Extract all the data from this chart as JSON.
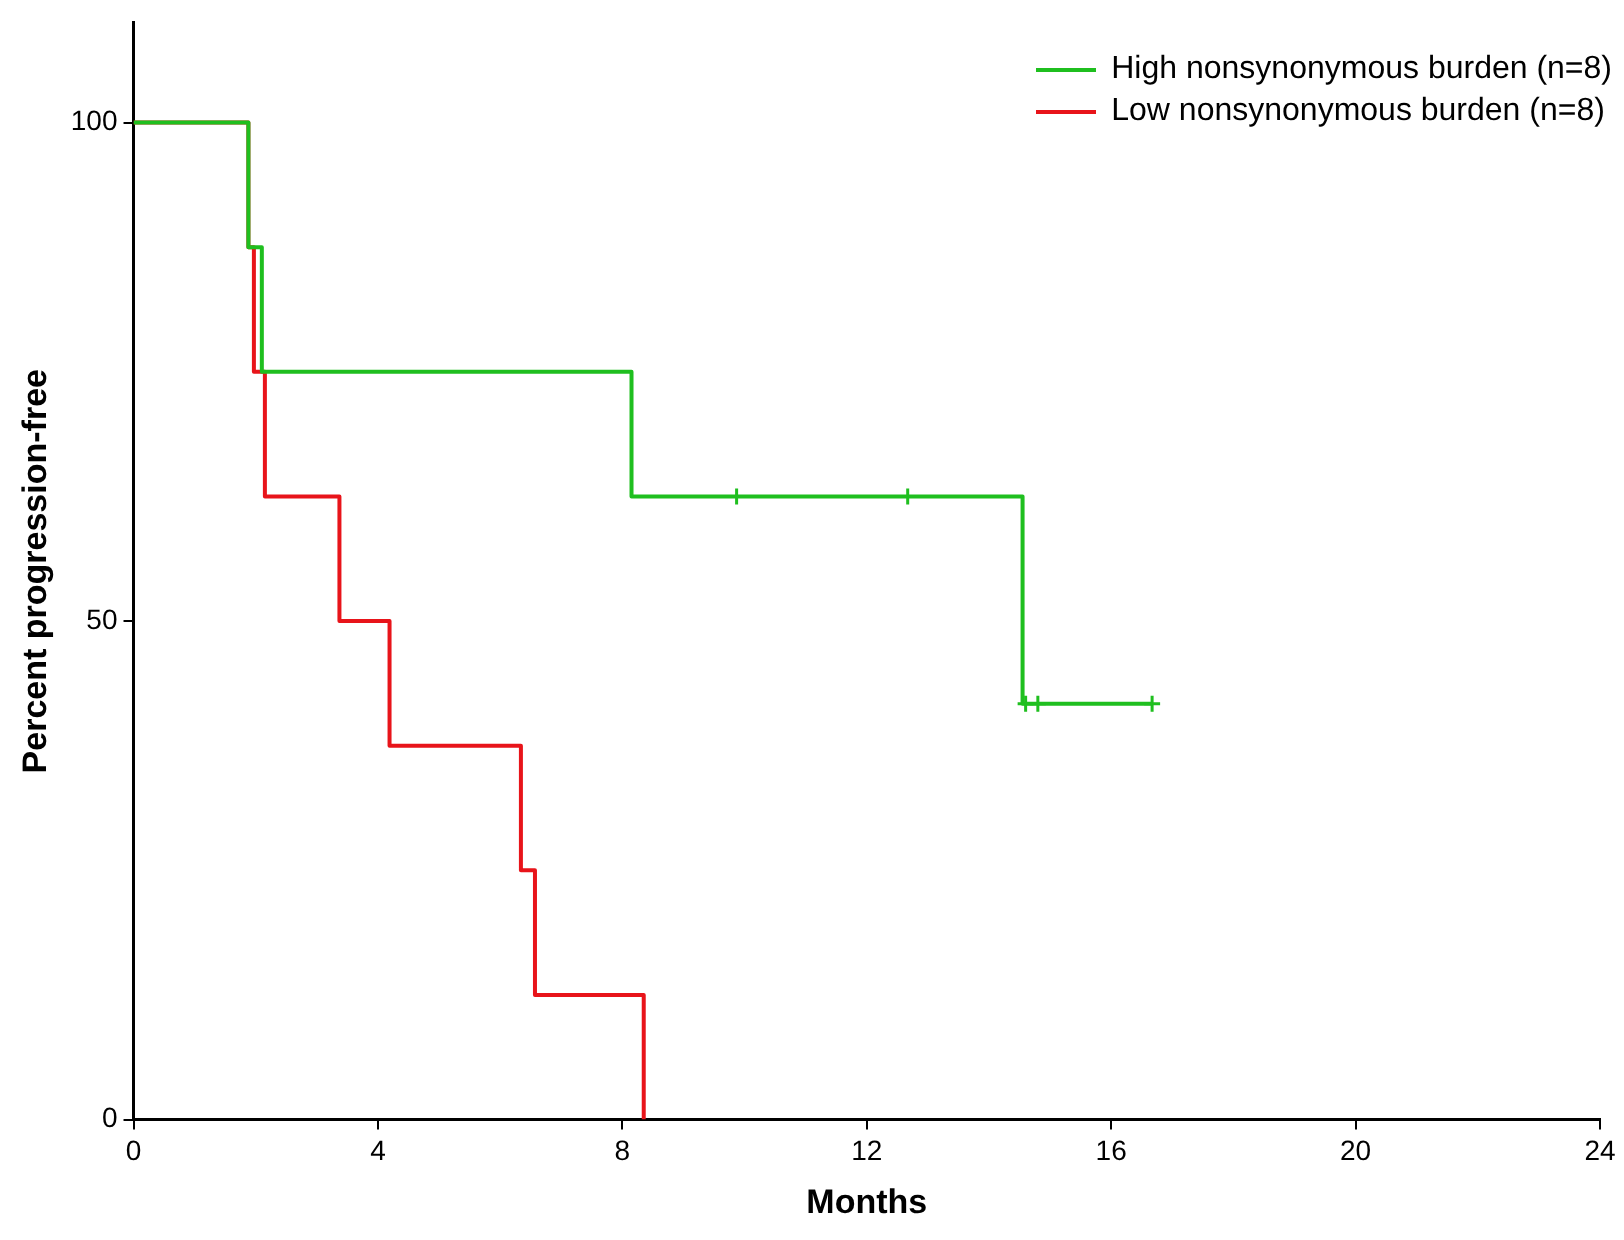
{
  "chart_data": {
    "type": "step",
    "xlabel": "Months",
    "ylabel": "Percent progression-free",
    "xlim": [
      0,
      24
    ],
    "xticks": [
      0,
      4,
      8,
      12,
      16,
      20,
      24
    ],
    "ylim": [
      0,
      110
    ],
    "yticks": [
      0,
      50,
      100
    ],
    "grid": false,
    "legend": "top right",
    "line_style": "solid",
    "series": [
      {
        "name": "High nonsynonymous burden (n=8)",
        "color": "#1fbf1f",
        "x": [
          0,
          1.88,
          2.1,
          8.15,
          14.55,
          16.67
        ],
        "values": [
          100,
          87.5,
          75,
          62.5,
          41.7,
          41.7
        ]
      },
      {
        "name": "Low nonsynonymous burden (n=8)",
        "color": "#e8141a",
        "x": [
          0,
          1.88,
          1.97,
          2.15,
          3.37,
          4.19,
          6.34,
          6.57,
          8.35
        ],
        "values": [
          100,
          87.5,
          75,
          62.5,
          50,
          37.5,
          25,
          12.5,
          0
        ]
      },
      {
        "type": "scatter",
        "marker": "cross",
        "color": "#1fbf1f",
        "x": [
          9.87,
          12.67,
          14.6,
          14.8,
          16.67
        ],
        "values": [
          62.5,
          62.5,
          41.7,
          41.7,
          41.7
        ]
      }
    ]
  }
}
